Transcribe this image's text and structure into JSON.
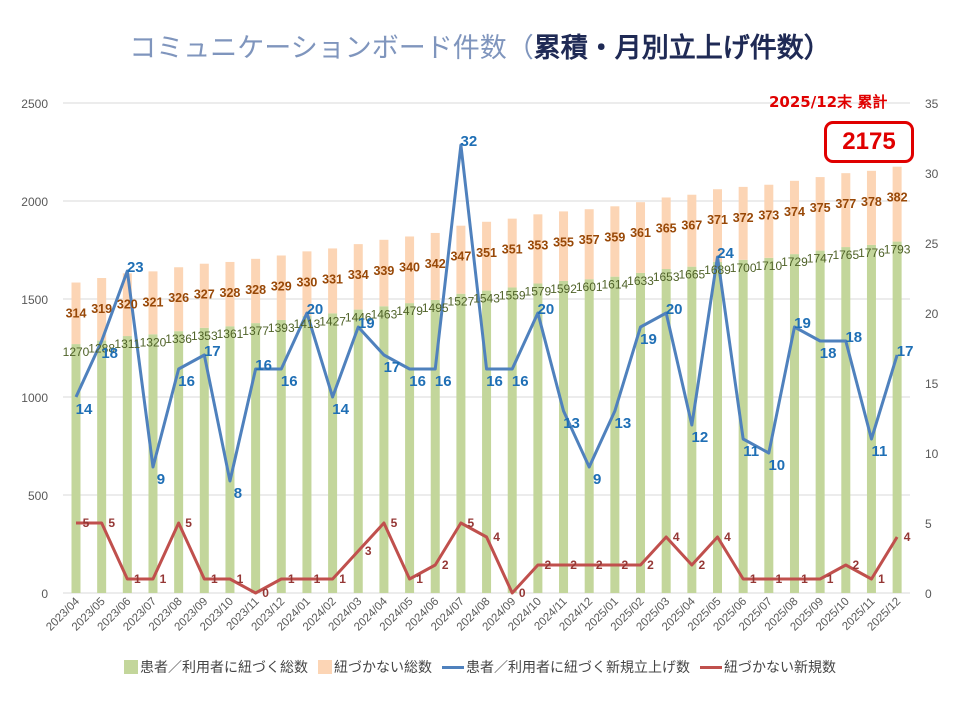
{
  "title": {
    "part1": "コミュニケーションボード件数（",
    "part2": "累積・月別立上げ件数）"
  },
  "summary": {
    "label": "2025/12末 累計",
    "value": "2175"
  },
  "colors": {
    "linked_total": "#c3d69b",
    "unlinked_total": "#fcd5b5",
    "linked_new": "#4f81bd",
    "unlinked_new": "#c0504d",
    "linked_total_label": "#4f6228",
    "unlinked_total_label": "#984807",
    "linked_new_label": "#1f6fb5",
    "unlinked_new_label": "#953735"
  },
  "chart_data": {
    "type": "bar",
    "title": "コミュニケーションボード件数（累積・月別立上げ件数）",
    "stacked": true,
    "categories": [
      "2023/04",
      "2023/05",
      "2023/06",
      "2023/07",
      "2023/08",
      "2023/09",
      "2023/10",
      "2023/11",
      "2023/12",
      "2024/01",
      "2024/02",
      "2024/03",
      "2024/04",
      "2024/05",
      "2024/06",
      "2024/07",
      "2024/08",
      "2024/09",
      "2024/10",
      "2024/11",
      "2024/12",
      "2025/01",
      "2025/02",
      "2025/03",
      "2025/04",
      "2025/05",
      "2025/06",
      "2025/07",
      "2025/08",
      "2025/09",
      "2025/10",
      "2025/11",
      "2025/12"
    ],
    "series": [
      {
        "name": "患者／利用者に紐づく総数",
        "type": "bar",
        "axis": "left",
        "values": [
          1270,
          1288,
          1311,
          1320,
          1336,
          1353,
          1361,
          1377,
          1393,
          1413,
          1427,
          1446,
          1463,
          1479,
          1495,
          1527,
          1543,
          1559,
          1579,
          1592,
          1601,
          1614,
          1633,
          1653,
          1665,
          1689,
          1700,
          1710,
          1729,
          1747,
          1765,
          1776,
          1793
        ]
      },
      {
        "name": "紐づかない総数",
        "type": "bar",
        "axis": "left",
        "values": [
          314,
          319,
          320,
          321,
          326,
          327,
          328,
          328,
          329,
          330,
          331,
          334,
          339,
          340,
          342,
          347,
          351,
          351,
          353,
          355,
          357,
          359,
          361,
          365,
          367,
          371,
          372,
          373,
          374,
          375,
          377,
          378,
          382
        ]
      },
      {
        "name": "患者／利用者に紐づく新規立上げ数",
        "type": "line",
        "axis": "right",
        "values": [
          14,
          18,
          23,
          9,
          16,
          17,
          8,
          16,
          16,
          20,
          14,
          19,
          17,
          16,
          16,
          32,
          16,
          16,
          20,
          13,
          9,
          13,
          19,
          20,
          12,
          24,
          11,
          10,
          19,
          18,
          18,
          11,
          17
        ]
      },
      {
        "name": "紐づかない新規数",
        "type": "line",
        "axis": "right",
        "values": [
          5,
          5,
          1,
          1,
          5,
          1,
          1,
          0,
          1,
          1,
          1,
          3,
          5,
          1,
          2,
          5,
          4,
          0,
          2,
          2,
          2,
          2,
          2,
          4,
          2,
          4,
          1,
          1,
          1,
          1,
          2,
          1,
          4
        ]
      }
    ],
    "y_left": {
      "min": 0,
      "max": 2500,
      "ticks": [
        0,
        500,
        1000,
        1500,
        2000,
        2500
      ]
    },
    "y_right": {
      "min": 0,
      "max": 35,
      "ticks": [
        0,
        5,
        10,
        15,
        20,
        25,
        30,
        35
      ]
    },
    "grid": true,
    "legend": "bottom",
    "xlabel": "",
    "ylabel": ""
  }
}
